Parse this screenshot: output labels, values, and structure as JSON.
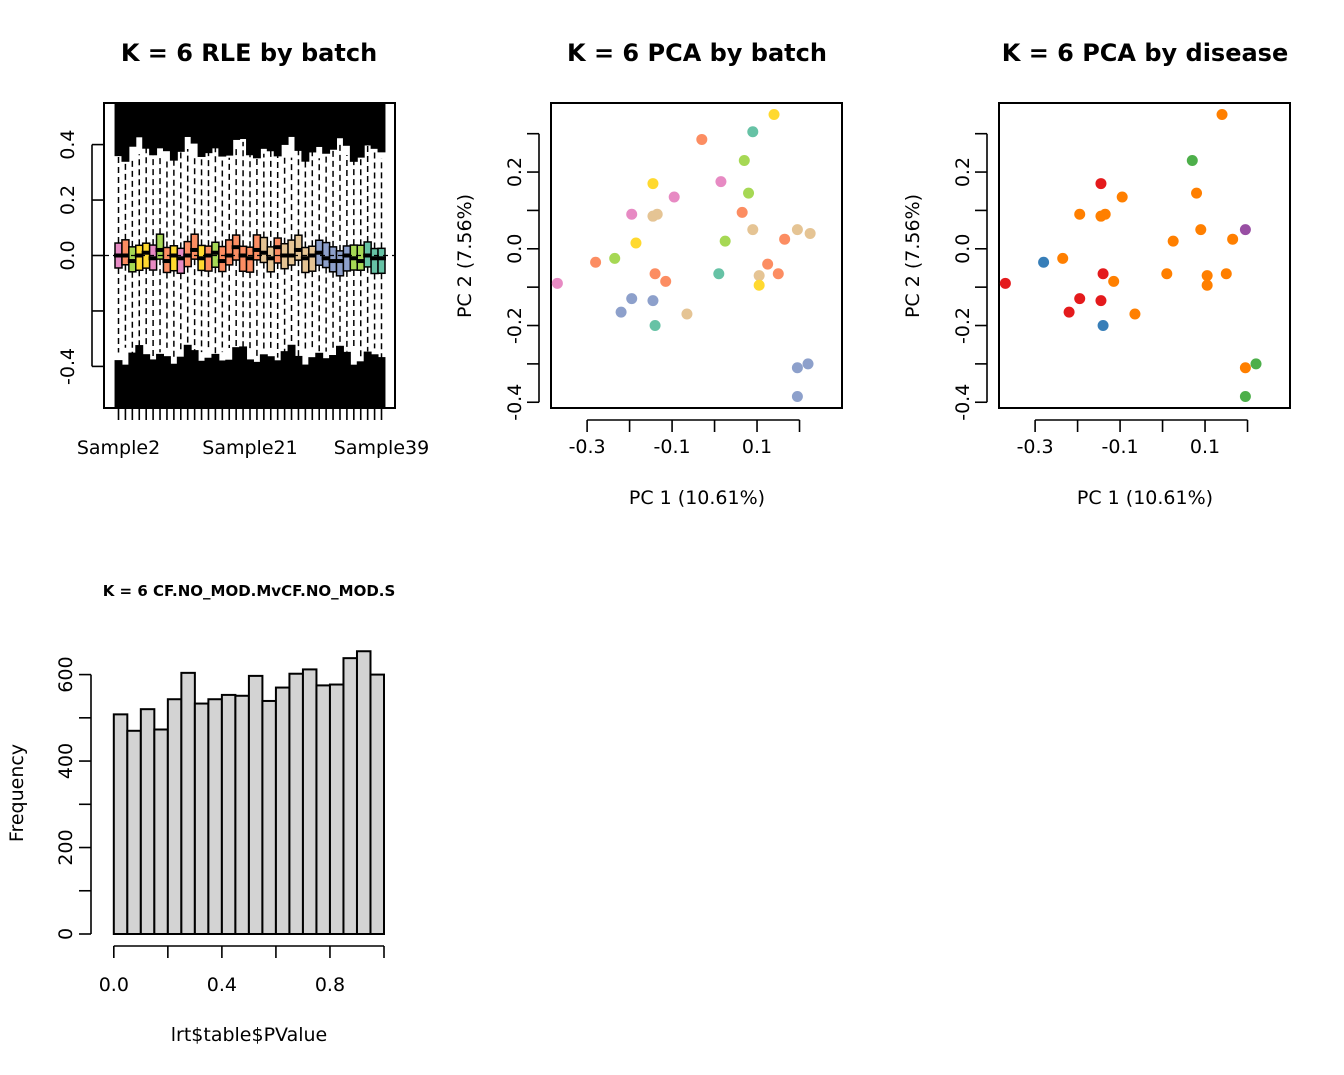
{
  "chart_data": [
    {
      "type": "boxplot",
      "title": "K = 6 RLE by batch",
      "xlabel": "",
      "ylabel": "",
      "x_tick_labels": [
        "Sample2",
        "Sample21",
        "Sample39"
      ],
      "y_ticks": [
        -0.4,
        0.0,
        0.2,
        0.4
      ],
      "y_tick_labels": [
        "-0.4",
        "0.0",
        "0.2",
        "0.4"
      ],
      "ylim": [
        -0.55,
        0.55
      ],
      "n_samples": 39,
      "medians": [
        0.0,
        0.0,
        -0.02,
        0.0,
        0.01,
        -0.01,
        0.02,
        -0.02,
        0.0,
        -0.01,
        0.0,
        0.02,
        -0.01,
        0.0,
        0.01,
        -0.02,
        0.0,
        0.03,
        0.0,
        -0.01,
        0.02,
        0.01,
        -0.01,
        0.03,
        0.0,
        0.0,
        0.02,
        -0.01,
        0.0,
        0.01,
        -0.01,
        -0.02,
        -0.02,
        0.0,
        -0.01,
        -0.02,
        0.0,
        -0.01,
        -0.01
      ],
      "box_colors": [
        "#E78AC3",
        "#FC8D62",
        "#A6D854",
        "#FFD92F",
        "#FFD92F",
        "#E78AC3",
        "#A6D854",
        "#FC8D62",
        "#FFD92F",
        "#E78AC3",
        "#FC8D62",
        "#FC8D62",
        "#FFD92F",
        "#FC8D62",
        "#A6D854",
        "#FC8D62",
        "#FC8D62",
        "#FC8D62",
        "#FC8D62",
        "#FC8D62",
        "#FC8D62",
        "#E5C494",
        "#E5C494",
        "#FC8D62",
        "#E5C494",
        "#E5C494",
        "#E5C494",
        "#E5C494",
        "#E5C494",
        "#8DA0CB",
        "#8DA0CB",
        "#8DA0CB",
        "#8DA0CB",
        "#8DA0CB",
        "#A6D854",
        "#A6D854",
        "#66C2A5",
        "#66C2A5",
        "#66C2A5"
      ]
    },
    {
      "type": "scatter",
      "title": "K = 6 PCA by batch",
      "xlabel": "PC 1 (10.61%)",
      "ylabel": "PC 2 (7.56%)",
      "x_ticks": [
        -0.3,
        -0.1,
        0.1
      ],
      "x_tick_labels": [
        "-0.3",
        "-0.1",
        "0.1"
      ],
      "y_ticks": [
        -0.4,
        -0.2,
        0.0,
        0.2
      ],
      "y_tick_labels": [
        "-0.4",
        "-0.2",
        "0.0",
        "0.2"
      ],
      "xlim": [
        -0.385,
        0.3
      ],
      "ylim": [
        -0.415,
        0.38
      ],
      "points": [
        {
          "x": -0.37,
          "y": -0.09,
          "color": "#E78AC3"
        },
        {
          "x": -0.28,
          "y": -0.035,
          "color": "#FC8D62"
        },
        {
          "x": -0.235,
          "y": -0.025,
          "color": "#A6D854"
        },
        {
          "x": -0.22,
          "y": -0.165,
          "color": "#8DA0CB"
        },
        {
          "x": -0.195,
          "y": -0.13,
          "color": "#8DA0CB"
        },
        {
          "x": -0.195,
          "y": 0.09,
          "color": "#E78AC3"
        },
        {
          "x": -0.185,
          "y": 0.015,
          "color": "#FFD92F"
        },
        {
          "x": -0.145,
          "y": 0.17,
          "color": "#FFD92F"
        },
        {
          "x": -0.145,
          "y": 0.085,
          "color": "#E5C494"
        },
        {
          "x": -0.135,
          "y": 0.09,
          "color": "#E5C494"
        },
        {
          "x": -0.14,
          "y": -0.065,
          "color": "#FC8D62"
        },
        {
          "x": -0.145,
          "y": -0.135,
          "color": "#8DA0CB"
        },
        {
          "x": -0.14,
          "y": -0.2,
          "color": "#66C2A5"
        },
        {
          "x": -0.115,
          "y": -0.085,
          "color": "#FC8D62"
        },
        {
          "x": -0.095,
          "y": 0.135,
          "color": "#E78AC3"
        },
        {
          "x": -0.065,
          "y": -0.17,
          "color": "#E5C494"
        },
        {
          "x": -0.03,
          "y": 0.285,
          "color": "#FC8D62"
        },
        {
          "x": 0.01,
          "y": -0.065,
          "color": "#66C2A5"
        },
        {
          "x": 0.015,
          "y": 0.175,
          "color": "#E78AC3"
        },
        {
          "x": 0.025,
          "y": 0.02,
          "color": "#A6D854"
        },
        {
          "x": 0.065,
          "y": 0.095,
          "color": "#FC8D62"
        },
        {
          "x": 0.07,
          "y": 0.23,
          "color": "#A6D854"
        },
        {
          "x": 0.08,
          "y": 0.145,
          "color": "#A6D854"
        },
        {
          "x": 0.09,
          "y": 0.305,
          "color": "#66C2A5"
        },
        {
          "x": 0.09,
          "y": 0.05,
          "color": "#E5C494"
        },
        {
          "x": 0.105,
          "y": -0.07,
          "color": "#E5C494"
        },
        {
          "x": 0.105,
          "y": -0.095,
          "color": "#FFD92F"
        },
        {
          "x": 0.125,
          "y": -0.04,
          "color": "#FC8D62"
        },
        {
          "x": 0.14,
          "y": 0.35,
          "color": "#FFD92F"
        },
        {
          "x": 0.15,
          "y": -0.065,
          "color": "#FC8D62"
        },
        {
          "x": 0.165,
          "y": 0.025,
          "color": "#FC8D62"
        },
        {
          "x": 0.195,
          "y": 0.05,
          "color": "#E5C494"
        },
        {
          "x": 0.225,
          "y": 0.04,
          "color": "#E5C494"
        },
        {
          "x": 0.195,
          "y": -0.31,
          "color": "#8DA0CB"
        },
        {
          "x": 0.22,
          "y": -0.3,
          "color": "#8DA0CB"
        },
        {
          "x": 0.195,
          "y": -0.385,
          "color": "#8DA0CB"
        }
      ]
    },
    {
      "type": "scatter",
      "title": "K = 6 PCA by disease",
      "xlabel": "PC 1 (10.61%)",
      "ylabel": "PC 2 (7.56%)",
      "x_ticks": [
        -0.3,
        -0.1,
        0.1
      ],
      "x_tick_labels": [
        "-0.3",
        "-0.1",
        "0.1"
      ],
      "y_ticks": [
        -0.4,
        -0.2,
        0.0,
        0.2
      ],
      "y_tick_labels": [
        "-0.4",
        "-0.2",
        "0.0",
        "0.2"
      ],
      "xlim": [
        -0.385,
        0.3
      ],
      "ylim": [
        -0.415,
        0.38
      ],
      "points": [
        {
          "x": -0.37,
          "y": -0.09,
          "color": "#E41A1C"
        },
        {
          "x": -0.28,
          "y": -0.035,
          "color": "#377EB8"
        },
        {
          "x": -0.235,
          "y": -0.025,
          "color": "#FF7F00"
        },
        {
          "x": -0.22,
          "y": -0.165,
          "color": "#E41A1C"
        },
        {
          "x": -0.195,
          "y": -0.13,
          "color": "#E41A1C"
        },
        {
          "x": -0.195,
          "y": 0.09,
          "color": "#FF7F00"
        },
        {
          "x": -0.145,
          "y": 0.17,
          "color": "#E41A1C"
        },
        {
          "x": -0.145,
          "y": 0.085,
          "color": "#FF7F00"
        },
        {
          "x": -0.135,
          "y": 0.09,
          "color": "#FF7F00"
        },
        {
          "x": -0.14,
          "y": -0.065,
          "color": "#E41A1C"
        },
        {
          "x": -0.145,
          "y": -0.135,
          "color": "#E41A1C"
        },
        {
          "x": -0.14,
          "y": -0.2,
          "color": "#377EB8"
        },
        {
          "x": -0.115,
          "y": -0.085,
          "color": "#FF7F00"
        },
        {
          "x": -0.095,
          "y": 0.135,
          "color": "#FF7F00"
        },
        {
          "x": -0.065,
          "y": -0.17,
          "color": "#FF7F00"
        },
        {
          "x": 0.01,
          "y": -0.065,
          "color": "#FF7F00"
        },
        {
          "x": 0.025,
          "y": 0.02,
          "color": "#FF7F00"
        },
        {
          "x": 0.07,
          "y": 0.23,
          "color": "#4DAF4A"
        },
        {
          "x": 0.08,
          "y": 0.145,
          "color": "#FF7F00"
        },
        {
          "x": 0.09,
          "y": 0.05,
          "color": "#FF7F00"
        },
        {
          "x": 0.105,
          "y": -0.07,
          "color": "#FF7F00"
        },
        {
          "x": 0.105,
          "y": -0.095,
          "color": "#FF7F00"
        },
        {
          "x": 0.14,
          "y": 0.35,
          "color": "#FF7F00"
        },
        {
          "x": 0.15,
          "y": -0.065,
          "color": "#FF7F00"
        },
        {
          "x": 0.165,
          "y": 0.025,
          "color": "#FF7F00"
        },
        {
          "x": 0.195,
          "y": 0.05,
          "color": "#984EA3"
        },
        {
          "x": 0.22,
          "y": -0.3,
          "color": "#4DAF4A"
        },
        {
          "x": 0.195,
          "y": -0.31,
          "color": "#FF7F00"
        },
        {
          "x": 0.195,
          "y": -0.385,
          "color": "#4DAF4A"
        }
      ]
    },
    {
      "type": "bar",
      "title": "K = 6 CF.NO_MOD.MvCF.NO_MOD.S",
      "xlabel": "lrt$table$PValue",
      "ylabel": "Frequency",
      "bin_edges": [
        0.0,
        0.05,
        0.1,
        0.15,
        0.2,
        0.25,
        0.3,
        0.35,
        0.4,
        0.45,
        0.5,
        0.55,
        0.6,
        0.65,
        0.7,
        0.75,
        0.8,
        0.85,
        0.9,
        0.95,
        1.0
      ],
      "values": [
        508,
        470,
        520,
        473,
        543,
        604,
        533,
        543,
        553,
        551,
        597,
        539,
        570,
        602,
        612,
        575,
        577,
        638,
        654,
        600
      ],
      "x_ticks": [
        0.0,
        0.4,
        0.8
      ],
      "x_tick_labels": [
        "0.0",
        "0.4",
        "0.8"
      ],
      "x_minor_ticks": [
        0.0,
        0.2,
        0.4,
        0.6,
        0.8,
        1.0
      ],
      "y_ticks": [
        0,
        200,
        400,
        600
      ],
      "y_tick_labels": [
        "0",
        "200",
        "400",
        "600"
      ],
      "y_minor_ticks": [
        0,
        100,
        200,
        300,
        400,
        500,
        600
      ],
      "xlim": [
        -0.04,
        1.0
      ],
      "ylim": [
        0,
        680
      ],
      "bar_color": "#D3D3D3"
    }
  ]
}
